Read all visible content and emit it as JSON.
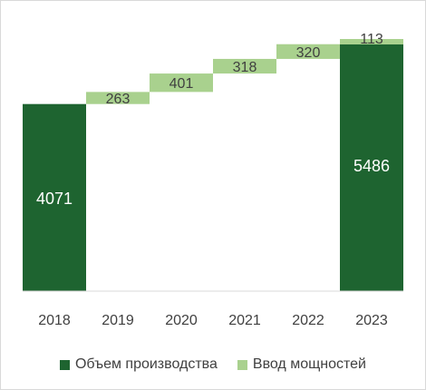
{
  "chart_data": {
    "type": "bar",
    "subtype": "waterfall",
    "categories": [
      "2018",
      "2019",
      "2020",
      "2021",
      "2022",
      "2023"
    ],
    "series": [
      {
        "name": "Объем производства",
        "color": "#1e6430",
        "values": [
          4071,
          null,
          null,
          null,
          null,
          5486
        ]
      },
      {
        "name": "Ввод мощностей",
        "color": "#a9d18e",
        "values": [
          null,
          263,
          401,
          318,
          320,
          113
        ]
      }
    ],
    "totals": [
      4071,
      4334,
      4735,
      5053,
      5373,
      5486
    ],
    "ylim": [
      0,
      5486
    ],
    "grid": false,
    "legend_position": "bottom"
  }
}
